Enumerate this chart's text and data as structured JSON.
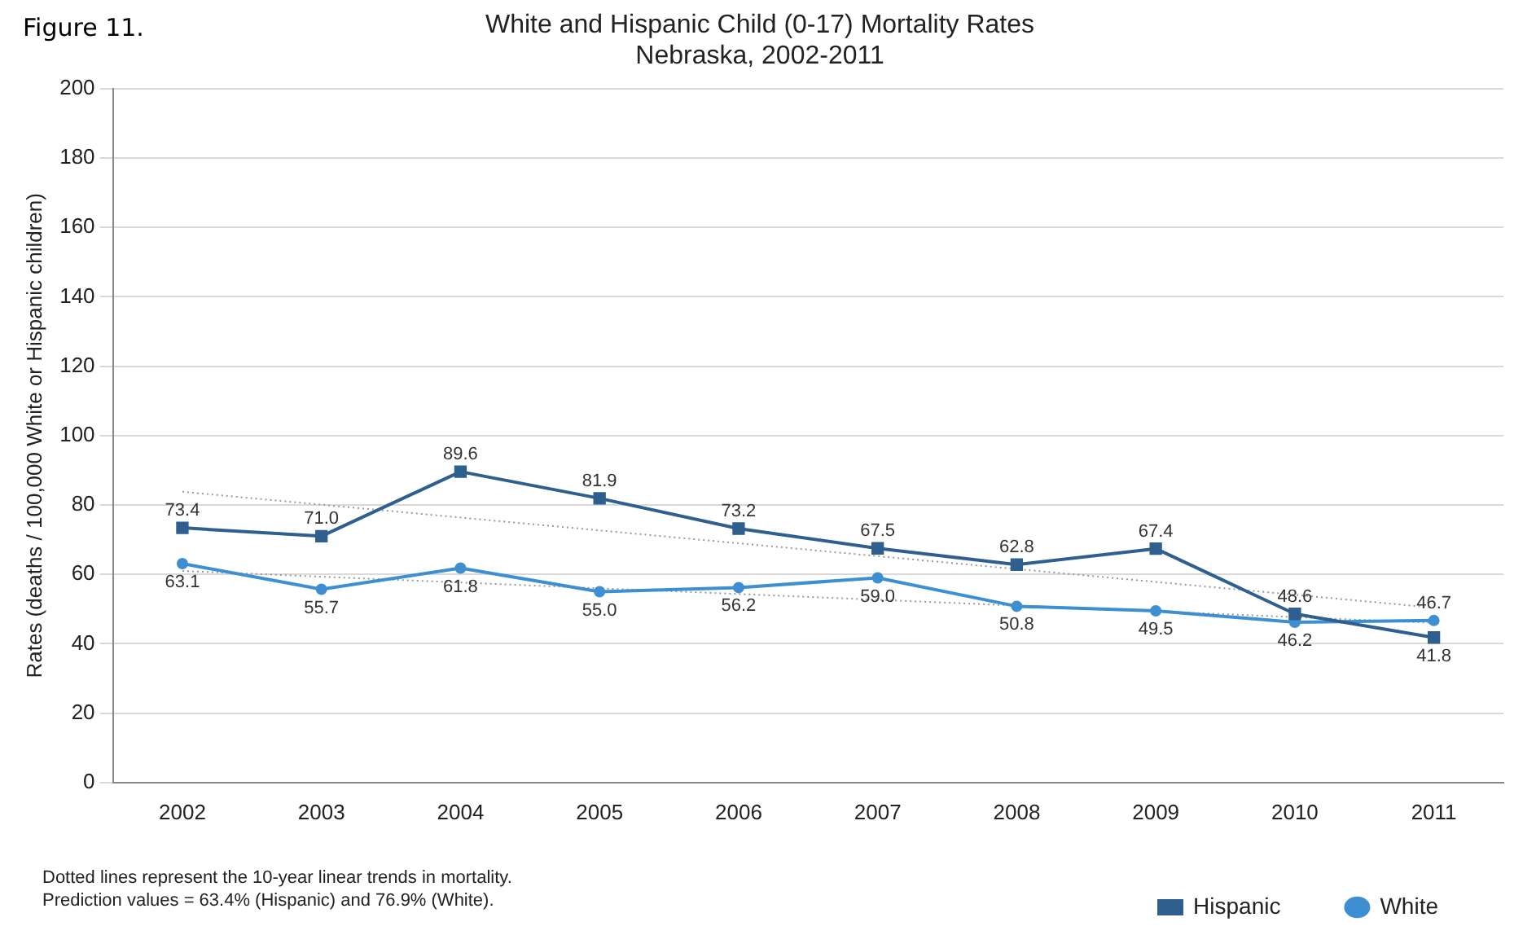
{
  "chart_data": {
    "type": "line",
    "title": [
      "White and Hispanic Child (0-17) Mortality Rates",
      "Nebraska, 2002-2011"
    ],
    "ylabel": "Rates (deaths / 100,000 White or Hispanic children)",
    "categories": [
      "2002",
      "2003",
      "2004",
      "2005",
      "2006",
      "2007",
      "2008",
      "2009",
      "2010",
      "2011"
    ],
    "series": [
      {
        "name": "Hispanic",
        "color": "#2f5f8f",
        "marker": "square",
        "values": [
          73.4,
          71.0,
          89.6,
          81.9,
          73.2,
          67.5,
          62.8,
          67.4,
          48.6,
          41.8
        ],
        "value_labels": [
          "73.4",
          "71.0",
          "89.6",
          "81.9",
          "73.2",
          "67.5",
          "62.8",
          "67.4",
          "48.6",
          "41.8"
        ]
      },
      {
        "name": "White",
        "color": "#3d8fd1",
        "marker": "circle",
        "values": [
          63.1,
          55.7,
          61.8,
          55.0,
          56.2,
          59.0,
          50.8,
          49.5,
          46.2,
          46.7
        ],
        "value_labels": [
          "63.1",
          "55.7",
          "61.8",
          "55.0",
          "56.2",
          "59.0",
          "50.8",
          "49.5",
          "46.2",
          "46.7"
        ]
      },
      {
        "type": "line",
        "color": "#999999",
        "marker": "none",
        "line_style": "dotted",
        "values": [
          83.8,
          null,
          null,
          null,
          null,
          null,
          null,
          null,
          null,
          50.4
        ]
      },
      {
        "type": "line",
        "color": "#999999",
        "marker": "none",
        "line_style": "dotted",
        "values": [
          61.0,
          null,
          null,
          null,
          null,
          null,
          null,
          null,
          null,
          46.0
        ]
      }
    ],
    "ylim": [
      0,
      200
    ],
    "yticks": [
      0,
      20,
      40,
      60,
      80,
      100,
      120,
      140,
      160,
      180,
      200
    ],
    "grid": "y",
    "legend": "bottom right",
    "annotations": [
      "Figure 11.",
      "Dotted lines represent the 10-year linear trends in mortality.",
      "Prediction values = 63.4% (Hispanic) and 76.9% (White)."
    ]
  }
}
